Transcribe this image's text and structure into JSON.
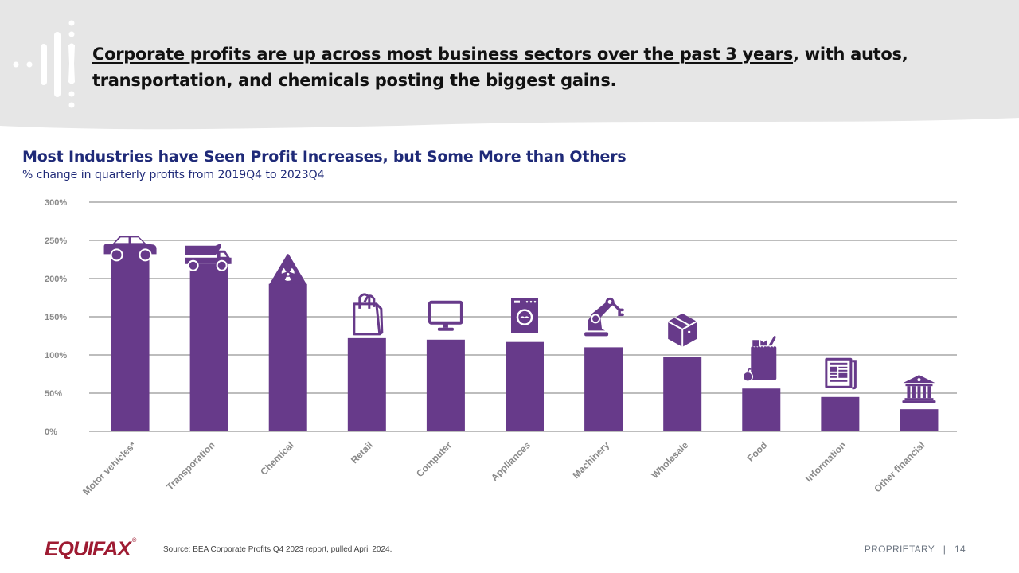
{
  "header": {
    "headline_underlined": "Corporate profits are up across most business sectors over the past 3 years",
    "headline_rest": ", with autos, transportation, and chemicals posting the biggest gains."
  },
  "chart_data": {
    "type": "bar",
    "title": "Most Industries have Seen Profit Increases, but Some More than Others",
    "subtitle": "% change in quarterly profits from 2019Q4 to 2023Q4",
    "xlabel": "",
    "ylabel": "",
    "ylim": [
      0,
      300
    ],
    "yticks": [
      0,
      50,
      100,
      150,
      200,
      250,
      300
    ],
    "ytick_labels": [
      "0%",
      "50%",
      "100%",
      "150%",
      "200%",
      "250%",
      "300%"
    ],
    "grid": true,
    "bar_color": "#673a8a",
    "categories": [
      "Motor vehicles*",
      "Transporation",
      "Chemical",
      "Retail",
      "Computer",
      "Appliances",
      "Machinery",
      "Wholesale",
      "Food",
      "Information",
      "Other financial"
    ],
    "values": [
      233,
      219,
      193,
      122,
      120,
      117,
      110,
      97,
      56,
      45,
      29
    ],
    "icons": [
      "car-icon",
      "dump-truck-icon",
      "hazard-icon",
      "shopping-bag-icon",
      "monitor-icon",
      "washing-machine-icon",
      "robot-arm-icon",
      "package-box-icon",
      "grocery-bag-icon",
      "newspaper-icon",
      "bank-icon"
    ]
  },
  "footer": {
    "brand": "EQUIFAX",
    "brand_mark": "®",
    "source": "Source: BEA Corporate Profits Q4 2023 report, pulled April 2024.",
    "proprietary": "PROPRIETARY   |   14"
  },
  "colors": {
    "brand_red": "#9e1b32",
    "title_navy": "#1f2a78",
    "bar_purple": "#673a8a",
    "header_gray": "#e6e6e6"
  }
}
